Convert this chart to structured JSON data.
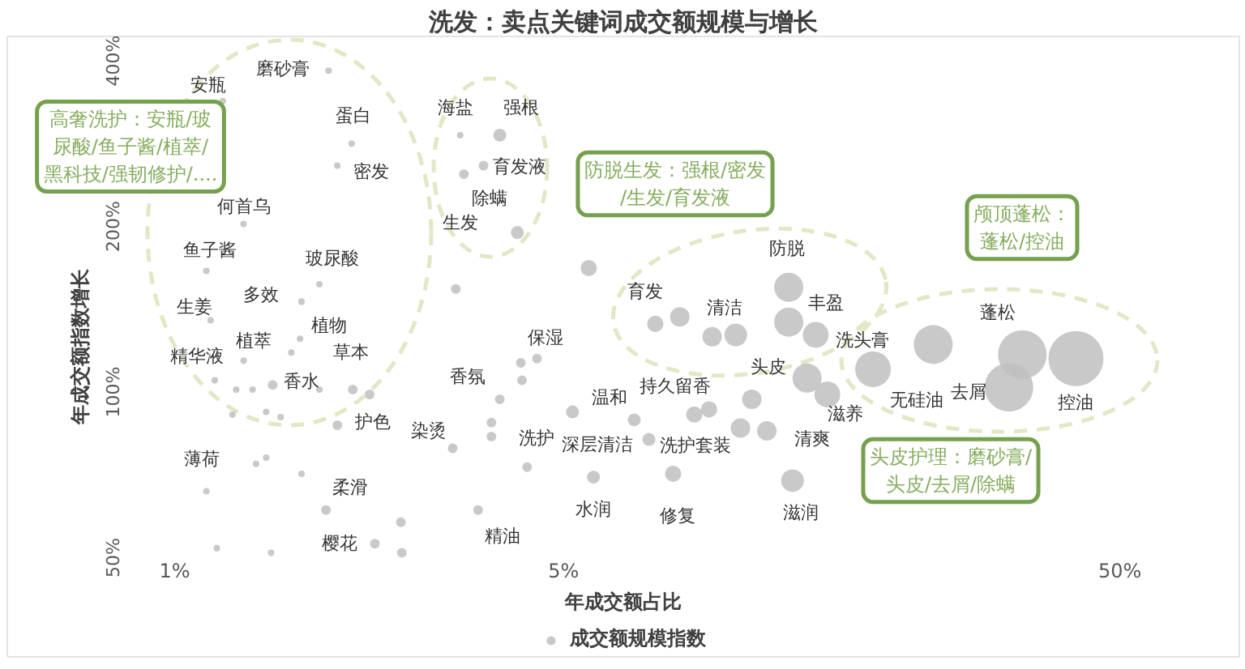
{
  "chart_data": {
    "type": "bubble",
    "title": "洗发：卖点关键词成交额规模与增长",
    "xlabel": "年成交额占比",
    "ylabel": "年成交额指数增长",
    "log": "xy",
    "xlim": [
      0.5,
      82
    ],
    "ylim": [
      33,
      443
    ],
    "xticks": [
      {
        "value": 1,
        "label": "1%"
      },
      {
        "value": 5,
        "label": "5%"
      },
      {
        "value": 50,
        "label": "50%"
      }
    ],
    "yticks": [
      {
        "value": 50,
        "label": "50%"
      },
      {
        "value": 100,
        "label": "100%"
      },
      {
        "value": 200,
        "label": "200%"
      },
      {
        "value": 400,
        "label": "400%"
      }
    ],
    "legend": "bottom",
    "marker": "circle",
    "x": [
      1.89,
      1.22,
      2.08,
      1.96,
      1.33,
      1.14,
      1.82,
      1.69,
      1.16,
      1.68,
      1.33,
      1.62,
      1.18,
      1.5,
      1.96,
      3.16,
      1.14,
      1.87,
      2.29,
      3.26,
      3.84,
      3.59,
      3.31,
      4.13,
      3.84,
      4.48,
      4.3,
      3.51,
      5.19,
      9.13,
      7.12,
      10.4,
      5.66,
      7.87,
      11.6,
      12.9,
      7.31,
      10.2,
      12.7,
      12.7,
      14.2,
      13.7,
      14.9,
      18.0,
      33.4,
      31.6,
      41.7,
      23.1,
      1.29,
      1.38,
      2.09,
      2.24,
      1.27,
      1.46,
      1.55,
      1.46,
      1.4,
      1.69,
      2.55,
      2.56,
      1.19,
      1.49,
      5.55,
      3.2,
      8.09,
      9.25,
      4.19,
      4.21,
      3.71,
      3.71,
      10.9,
      8.59,
      1.82,
      6.7
    ],
    "series": [
      {
        "name": "成交额规模指数",
        "color": "#bfbfbf",
        "values": [
          384,
          338,
          283,
          258,
          202,
          166,
          157,
          146,
          135,
          125,
          114,
          118,
          105,
          103,
          87,
          79,
          66,
          61,
          53,
          293,
          293,
          258,
          249,
          195,
          97,
          115,
          73,
          61,
          92,
          93,
          82,
          86,
          70,
          71,
          85,
          69,
          133,
          127,
          155,
          134,
          127,
          106,
          99,
          110,
          117,
          102,
          115,
          122,
          101,
          101,
          101,
          99,
          91,
          92,
          90,
          76,
          74,
          71,
          58,
          51,
          52,
          51,
          168,
          154,
          137,
          126,
          113,
          105,
          88,
          83,
          97,
          91,
          101,
          89
        ],
        "sizes": [
          0.014,
          0.014,
          0.014,
          0.014,
          0.014,
          0.014,
          0.014,
          0.014,
          0.014,
          0.014,
          0.014,
          0.014,
          0.014,
          0.031,
          0.031,
          0.031,
          0.014,
          0.031,
          0.031,
          0.014,
          0.055,
          0.031,
          0.031,
          0.055,
          0.031,
          0.031,
          0.031,
          0.031,
          0.055,
          0.087,
          0.055,
          0.125,
          0.055,
          0.087,
          0.125,
          0.17,
          0.087,
          0.17,
          0.28,
          0.28,
          0.22,
          0.28,
          0.22,
          0.42,
          0.78,
          0.78,
          1,
          0.5,
          0.014,
          0.014,
          0.031,
          0.031,
          0.014,
          0.014,
          0.014,
          0.014,
          0.014,
          0.014,
          0.031,
          0.031,
          0.014,
          0.014,
          0.087,
          0.031,
          0.125,
          0.125,
          0.031,
          0.031,
          0.031,
          0.031,
          0.125,
          0.087,
          0.014,
          0.055
        ]
      }
    ],
    "annotations": [
      {
        "text": "磨砂膏",
        "x": 1.89,
        "y": 384
      },
      {
        "text": "安瓶",
        "x": 1.22,
        "y": 338
      },
      {
        "text": "蛋白",
        "x": 2.08,
        "y": 283
      },
      {
        "text": "密发",
        "x": 1.96,
        "y": 258
      },
      {
        "text": "何首乌",
        "x": 1.33,
        "y": 202
      },
      {
        "text": "鱼子酱",
        "x": 1.14,
        "y": 166
      },
      {
        "text": "玻尿酸",
        "x": 1.82,
        "y": 157
      },
      {
        "text": "多效",
        "x": 1.69,
        "y": 146
      },
      {
        "text": "生姜",
        "x": 1.16,
        "y": 135
      },
      {
        "text": "植物",
        "x": 1.68,
        "y": 125
      },
      {
        "text": "植萃",
        "x": 1.33,
        "y": 114
      },
      {
        "text": "草本",
        "x": 1.62,
        "y": 118
      },
      {
        "text": "精华液",
        "x": 1.18,
        "y": 105
      },
      {
        "text": "香水",
        "x": 1.5,
        "y": 103
      },
      {
        "text": "护色",
        "x": 1.96,
        "y": 87
      },
      {
        "text": "染烫",
        "x": 3.16,
        "y": 79
      },
      {
        "text": "薄荷",
        "x": 1.14,
        "y": 66
      },
      {
        "text": "柔滑",
        "x": 1.87,
        "y": 61
      },
      {
        "text": "樱花",
        "x": 2.29,
        "y": 53
      },
      {
        "text": "海盐",
        "x": 3.26,
        "y": 293
      },
      {
        "text": "强根",
        "x": 3.84,
        "y": 293
      },
      {
        "text": "育发液",
        "x": 3.59,
        "y": 258
      },
      {
        "text": "除螨",
        "x": 3.31,
        "y": 249
      },
      {
        "text": "生发",
        "x": 4.13,
        "y": 195
      },
      {
        "text": "香氛",
        "x": 3.84,
        "y": 97
      },
      {
        "text": "保湿",
        "x": 4.48,
        "y": 115
      },
      {
        "text": "洗护",
        "x": 4.3,
        "y": 73
      },
      {
        "text": "精油",
        "x": 3.51,
        "y": 61
      },
      {
        "text": "温和",
        "x": 5.19,
        "y": 92
      },
      {
        "text": "持久留香",
        "x": 9.13,
        "y": 93
      },
      {
        "text": "深层清洁",
        "x": 7.12,
        "y": 82
      },
      {
        "text": "洗护套装",
        "x": 10.4,
        "y": 86
      },
      {
        "text": "水润",
        "x": 5.66,
        "y": 70
      },
      {
        "text": "修复",
        "x": 7.87,
        "y": 71
      },
      {
        "text": "清爽",
        "x": 11.6,
        "y": 85
      },
      {
        "text": "滋润",
        "x": 12.9,
        "y": 69
      },
      {
        "text": "育发",
        "x": 7.31,
        "y": 133
      },
      {
        "text": "清洁",
        "x": 10.2,
        "y": 127
      },
      {
        "text": "防脱",
        "x": 12.7,
        "y": 155
      },
      {
        "text": "丰盈",
        "x": 12.7,
        "y": 134
      },
      {
        "text": "洗头膏",
        "x": 14.2,
        "y": 127
      },
      {
        "text": "头皮",
        "x": 13.7,
        "y": 106
      },
      {
        "text": "滋养",
        "x": 14.9,
        "y": 99
      },
      {
        "text": "无硅油",
        "x": 18.0,
        "y": 110
      },
      {
        "text": "蓬松",
        "x": 33.4,
        "y": 117
      },
      {
        "text": "去屑",
        "x": 31.6,
        "y": 102
      },
      {
        "text": "控油",
        "x": 41.7,
        "y": 115
      },
      "高奢洗护：安瓶/玻尿酸/鱼子酱/植萃/黑科技/强韧修护/....",
      "防脱生发：强根/密发/生发/育发液",
      "颅顶蓬松：蓬松/控油",
      "头皮护理：磨砂膏/头皮/去屑/除螨"
    ]
  }
}
